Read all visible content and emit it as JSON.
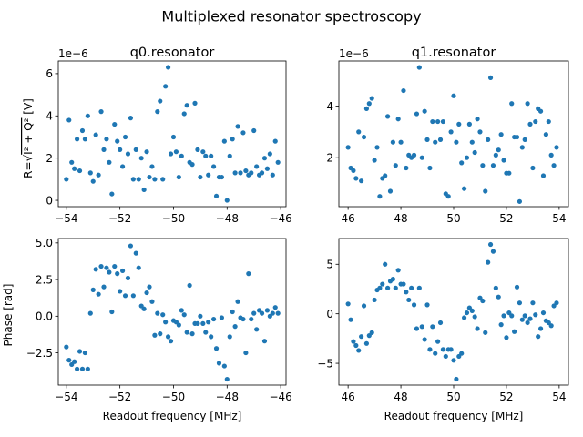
{
  "figure": {
    "title": "Multiplexed resonator spectroscopy",
    "colors": {
      "marker": "#1f77b4",
      "axes": "#000000",
      "background": "#ffffff"
    }
  },
  "chart_data": [
    {
      "type": "scatter",
      "title": "q0.resonator",
      "xlabel": "",
      "ylabel": "R=√(I²+Q²) [V]",
      "ylabel_main": "R=",
      "ylabel_math": "I² + Q²",
      "ylabel_unit": "[V]",
      "offset_text": "1e−6",
      "xlim": [
        -54.3,
        -45.8
      ],
      "ylim": [
        -0.3,
        6.6
      ],
      "xticks": [
        -54,
        -52,
        -50,
        -48,
        -46
      ],
      "xtick_labels": [
        "−54",
        "−52",
        "−50",
        "−48",
        "−46"
      ],
      "yticks": [
        0,
        2,
        4,
        6
      ],
      "ytick_labels": [
        "0",
        "2",
        "4",
        "6"
      ],
      "grid": false,
      "series": [
        {
          "x": [
            -54.0,
            -53.9,
            -53.8,
            -53.7,
            -53.6,
            -53.5,
            -53.4,
            -53.3,
            -53.2,
            -53.1,
            -53.0,
            -52.9,
            -52.8,
            -52.7,
            -52.6,
            -52.5,
            -52.4,
            -52.3,
            -52.2,
            -52.1,
            -52.0,
            -51.9,
            -51.8,
            -51.7,
            -51.6,
            -51.5,
            -51.4,
            -51.3,
            -51.2,
            -51.1,
            -51.0,
            -50.9,
            -50.8,
            -50.7,
            -50.6,
            -50.5,
            -50.4,
            -50.3,
            -50.2,
            -50.1,
            -50.0,
            -49.9,
            -49.8,
            -49.7,
            -49.6,
            -49.5,
            -49.4,
            -49.3,
            -49.2,
            -49.1,
            -49.0,
            -48.9,
            -48.8,
            -48.7,
            -48.6,
            -48.5,
            -48.4,
            -48.3,
            -48.2,
            -48.1,
            -48.0,
            -47.9,
            -47.8,
            -47.7,
            -47.6,
            -47.5,
            -47.4,
            -47.3,
            -47.2,
            -47.1,
            -47.0,
            -46.9,
            -46.8,
            -46.7,
            -46.6,
            -46.5,
            -46.4,
            -46.3,
            -46.2,
            -46.1
          ],
          "y": [
            1.0,
            3.8,
            1.8,
            1.5,
            2.9,
            1.4,
            3.3,
            2.9,
            4.0,
            1.3,
            0.9,
            3.1,
            1.2,
            4.2,
            2.4,
            2.9,
            1.8,
            0.3,
            3.6,
            2.8,
            2.4,
            1.6,
            3.0,
            2.2,
            3.9,
            1.0,
            2.4,
            1.0,
            2.0,
            0.5,
            2.3,
            1.1,
            1.6,
            1.0,
            4.2,
            4.7,
            1.0,
            5.4,
            6.3,
            2.2,
            3.0,
            2.3,
            1.1,
            2.1,
            4.1,
            4.5,
            1.8,
            1.7,
            4.6,
            2.4,
            1.1,
            2.3,
            2.1,
            1.2,
            2.1,
            1.6,
            0.2,
            1.1,
            1.1,
            2.8,
            0.0,
            2.1,
            2.9,
            1.3,
            3.5,
            1.3,
            3.2,
            1.4,
            1.2,
            1.3,
            3.3,
            1.6,
            1.2,
            1.3,
            2.0,
            1.5,
            2.2,
            1.2,
            2.8,
            1.8
          ]
        }
      ]
    },
    {
      "type": "scatter",
      "title": "q1.resonator",
      "xlabel": "",
      "ylabel": "",
      "offset_text": "1e−6",
      "xlim": [
        45.65,
        54.35
      ],
      "ylim": [
        0.1,
        5.75
      ],
      "xticks": [
        46,
        48,
        50,
        52,
        54
      ],
      "xtick_labels": [
        "46",
        "48",
        "50",
        "52",
        "54"
      ],
      "yticks": [
        2,
        4
      ],
      "ytick_labels": [
        "2",
        "4"
      ],
      "grid": false,
      "series": [
        {
          "x": [
            46.0,
            46.1,
            46.2,
            46.3,
            46.4,
            46.5,
            46.6,
            46.7,
            46.8,
            46.9,
            47.0,
            47.1,
            47.2,
            47.3,
            47.4,
            47.5,
            47.6,
            47.7,
            47.8,
            47.9,
            48.0,
            48.1,
            48.2,
            48.3,
            48.4,
            48.5,
            48.6,
            48.7,
            48.8,
            48.9,
            49.0,
            49.1,
            49.2,
            49.3,
            49.4,
            49.5,
            49.6,
            49.7,
            49.8,
            49.9,
            50.0,
            50.1,
            50.2,
            50.3,
            50.4,
            50.5,
            50.6,
            50.7,
            50.8,
            50.9,
            51.0,
            51.1,
            51.2,
            51.3,
            51.4,
            51.5,
            51.6,
            51.7,
            51.8,
            51.9,
            52.0,
            52.1,
            52.2,
            52.3,
            52.4,
            52.5,
            52.6,
            52.7,
            52.8,
            52.9,
            53.0,
            53.1,
            53.2,
            53.3,
            53.4,
            53.5,
            53.6,
            53.7,
            53.8,
            53.9
          ],
          "y": [
            2.4,
            1.6,
            1.5,
            1.2,
            3.0,
            1.1,
            2.8,
            3.9,
            4.1,
            4.3,
            1.9,
            2.4,
            0.5,
            1.2,
            1.3,
            3.6,
            0.7,
            2.6,
            1.7,
            3.5,
            2.6,
            4.6,
            1.6,
            2.1,
            2.0,
            2.1,
            3.7,
            5.5,
            2.0,
            3.8,
            2.7,
            1.6,
            3.4,
            2.6,
            3.4,
            2.7,
            3.4,
            0.6,
            0.5,
            3.0,
            4.4,
            2.6,
            3.3,
            1.8,
            0.8,
            2.0,
            3.3,
            2.6,
            2.2,
            3.5,
            3.0,
            1.7,
            0.7,
            2.7,
            5.1,
            1.7,
            2.1,
            2.3,
            2.9,
            1.9,
            1.4,
            1.4,
            4.1,
            2.8,
            2.8,
            0.3,
            2.4,
            2.7,
            4.1,
            3.3,
            1.6,
            3.4,
            3.9,
            3.8,
            1.3,
            2.9,
            3.4,
            2.1,
            1.7,
            2.4
          ]
        }
      ]
    },
    {
      "type": "scatter",
      "title": "",
      "xlabel": "Readout frequency [MHz]",
      "ylabel": "Phase [rad]",
      "xlim": [
        -54.3,
        -45.8
      ],
      "ylim": [
        -4.7,
        5.3
      ],
      "xticks": [
        -54,
        -52,
        -50,
        -48,
        -46
      ],
      "xtick_labels": [
        "−54",
        "−52",
        "−50",
        "−48",
        "−46"
      ],
      "yticks": [
        -2.5,
        0.0,
        2.5,
        5.0
      ],
      "ytick_labels": [
        "−2.5",
        "0.0",
        "2.5",
        "5.0"
      ],
      "grid": false,
      "series": [
        {
          "x": [
            -54.0,
            -53.9,
            -53.8,
            -53.7,
            -53.6,
            -53.5,
            -53.4,
            -53.3,
            -53.2,
            -53.1,
            -53.0,
            -52.9,
            -52.8,
            -52.7,
            -52.6,
            -52.5,
            -52.4,
            -52.3,
            -52.2,
            -52.1,
            -52.0,
            -51.9,
            -51.8,
            -51.7,
            -51.6,
            -51.5,
            -51.4,
            -51.3,
            -51.2,
            -51.1,
            -51.0,
            -50.9,
            -50.8,
            -50.7,
            -50.6,
            -50.5,
            -50.4,
            -50.3,
            -50.2,
            -50.1,
            -50.0,
            -49.9,
            -49.8,
            -49.7,
            -49.6,
            -49.5,
            -49.4,
            -49.3,
            -49.2,
            -49.1,
            -49.0,
            -48.9,
            -48.8,
            -48.7,
            -48.6,
            -48.5,
            -48.4,
            -48.3,
            -48.2,
            -48.1,
            -48.0,
            -47.9,
            -47.8,
            -47.7,
            -47.6,
            -47.5,
            -47.4,
            -47.3,
            -47.2,
            -47.1,
            -47.0,
            -46.9,
            -46.8,
            -46.7,
            -46.6,
            -46.5,
            -46.4,
            -46.3,
            -46.2,
            -46.1
          ],
          "y": [
            -2.1,
            -3.0,
            -3.3,
            -3.1,
            -3.6,
            -2.4,
            -3.6,
            -2.5,
            -3.6,
            0.2,
            1.8,
            3.2,
            1.5,
            3.4,
            2.0,
            3.3,
            3.0,
            0.3,
            3.4,
            2.9,
            1.7,
            3.1,
            1.4,
            2.6,
            4.8,
            1.4,
            4.3,
            3.3,
            0.7,
            0.5,
            1.6,
            2.0,
            1.0,
            -1.3,
            0.2,
            -1.2,
            0.1,
            -0.4,
            -1.4,
            -1.7,
            -0.3,
            -0.4,
            -0.6,
            0.4,
            0.1,
            -1.1,
            2.1,
            -1.2,
            -0.5,
            -0.5,
            0.0,
            -0.5,
            -1.1,
            -0.4,
            -1.4,
            -0.2,
            -2.2,
            -3.2,
            -0.1,
            -3.4,
            -4.3,
            -1.4,
            0.3,
            -0.7,
            1.0,
            -0.1,
            -0.2,
            -2.5,
            2.9,
            -0.2,
            0.2,
            -0.9,
            0.4,
            0.2,
            -1.7,
            0.4,
            0.0,
            0.2,
            0.6,
            0.2
          ]
        }
      ]
    },
    {
      "type": "scatter",
      "title": "",
      "xlabel": "Readout frequency [MHz]",
      "ylabel": "",
      "xlim": [
        45.65,
        54.35
      ],
      "ylim": [
        -7.2,
        7.6
      ],
      "xticks": [
        46,
        48,
        50,
        52,
        54
      ],
      "xtick_labels": [
        "46",
        "48",
        "50",
        "52",
        "54"
      ],
      "yticks": [
        -5,
        0,
        5
      ],
      "ytick_labels": [
        "−5",
        "0",
        "5"
      ],
      "grid": false,
      "series": [
        {
          "x": [
            46.0,
            46.1,
            46.2,
            46.3,
            46.4,
            46.5,
            46.6,
            46.7,
            46.8,
            46.9,
            47.0,
            47.1,
            47.2,
            47.3,
            47.4,
            47.5,
            47.6,
            47.7,
            47.8,
            47.9,
            48.0,
            48.1,
            48.2,
            48.3,
            48.4,
            48.5,
            48.6,
            48.7,
            48.8,
            48.9,
            49.0,
            49.1,
            49.2,
            49.3,
            49.4,
            49.5,
            49.6,
            49.7,
            49.8,
            49.9,
            50.0,
            50.1,
            50.2,
            50.3,
            50.4,
            50.5,
            50.6,
            50.7,
            50.8,
            50.9,
            51.0,
            51.1,
            51.2,
            51.3,
            51.4,
            51.5,
            51.6,
            51.7,
            51.8,
            51.9,
            52.0,
            52.1,
            52.2,
            52.3,
            52.4,
            52.5,
            52.6,
            52.7,
            52.8,
            52.9,
            53.0,
            53.1,
            53.2,
            53.3,
            53.4,
            53.5,
            53.6,
            53.7,
            53.8,
            53.9
          ],
          "y": [
            1.0,
            -0.6,
            -2.8,
            -3.2,
            -3.7,
            -2.3,
            0.8,
            -3.0,
            -2.2,
            -1.9,
            1.4,
            2.4,
            2.6,
            3.0,
            5.0,
            2.6,
            3.3,
            3.5,
            2.6,
            4.4,
            3.0,
            3.0,
            2.2,
            1.4,
            2.6,
            0.9,
            -1.5,
            2.6,
            -1.3,
            -2.6,
            0.9,
            -3.6,
            -1.3,
            -4.0,
            -2.8,
            -0.9,
            -3.6,
            -4.3,
            -3.6,
            -3.6,
            -4.7,
            -6.6,
            -4.3,
            -4.0,
            -0.4,
            0.1,
            0.6,
            0.3,
            -0.3,
            -1.5,
            1.6,
            1.3,
            -1.9,
            5.2,
            7.0,
            6.3,
            2.6,
            1.7,
            -1.1,
            -0.2,
            -2.4,
            0.1,
            -0.2,
            -1.8,
            2.7,
            1.1,
            -0.6,
            -0.2,
            -0.9,
            -0.5,
            1.1,
            -0.1,
            -2.3,
            -1.5,
            0.1,
            -0.7,
            -0.9,
            -1.2,
            0.8,
            1.1
          ]
        }
      ]
    }
  ]
}
